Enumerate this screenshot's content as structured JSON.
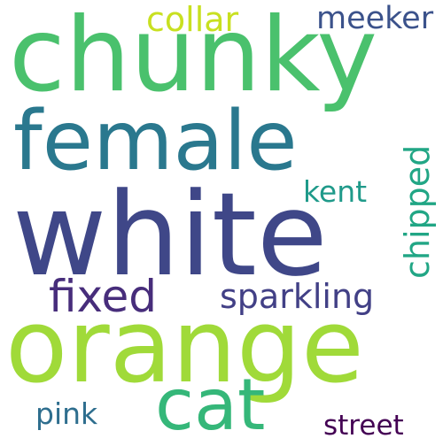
{
  "words": [
    {
      "text": "white",
      "color": "#3f4788"
    },
    {
      "text": "orange",
      "color": "#a0da39"
    },
    {
      "text": "chunky",
      "color": "#4ac16d"
    },
    {
      "text": "female",
      "color": "#2a788e"
    },
    {
      "text": "cat",
      "color": "#35b779"
    },
    {
      "text": "fixed",
      "color": "#472d7b"
    },
    {
      "text": "sparkling",
      "color": "#424086"
    },
    {
      "text": "collar",
      "color": "#c8e020"
    },
    {
      "text": "meeker",
      "color": "#3b528b"
    },
    {
      "text": "chipped",
      "color": "#21a685"
    },
    {
      "text": "kent",
      "color": "#1f9a8a"
    },
    {
      "text": "pink",
      "color": "#2e6e8e"
    },
    {
      "text": "street",
      "color": "#440154"
    }
  ]
}
